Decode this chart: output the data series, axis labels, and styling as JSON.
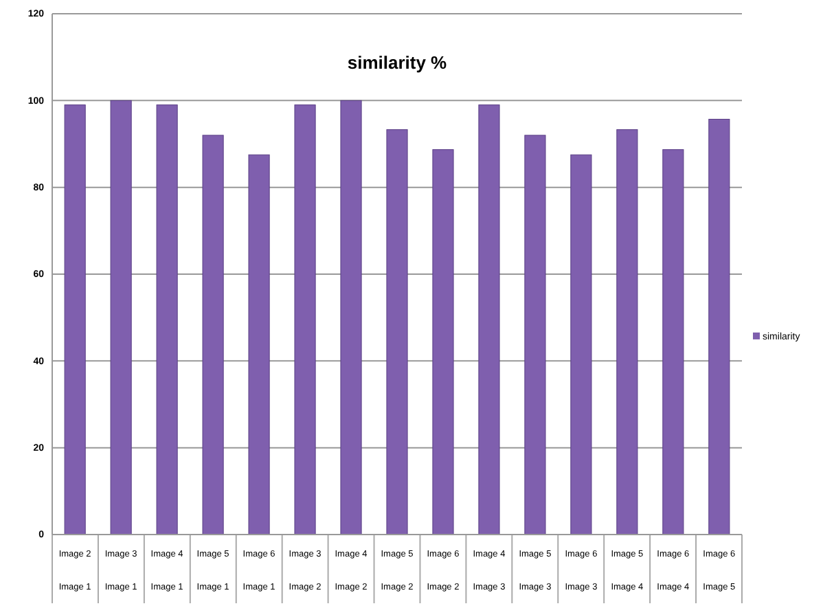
{
  "chart_data": {
    "type": "bar",
    "title": "similarity %",
    "categories": [
      "Image 2\nImage 1",
      "Image 3\nImage 1",
      "Image 4\nImage 1",
      "Image 5\nImage 1",
      "Image 6\nImage 1",
      "Image 3\nImage 2",
      "Image 4\nImage 2",
      "Image 5\nImage 2",
      "Image 6\nImage 2",
      "Image 4\nImage 3",
      "Image 5\nImage 3",
      "Image 6\nImage 3",
      "Image 5\nImage 4",
      "Image 6\nImage 4",
      "Image 6\nImage 5"
    ],
    "series": [
      {
        "name": "similarity",
        "color": "#7f5fae",
        "values": [
          99,
          100,
          99,
          92,
          87.5,
          99,
          100,
          93.3,
          88.7,
          99,
          92,
          87.5,
          93.3,
          88.7,
          95.7
        ]
      }
    ],
    "ylim": [
      0,
      120
    ],
    "yticks": [
      0,
      20,
      40,
      60,
      80,
      100,
      120
    ],
    "grid": "y",
    "legend": "right"
  }
}
